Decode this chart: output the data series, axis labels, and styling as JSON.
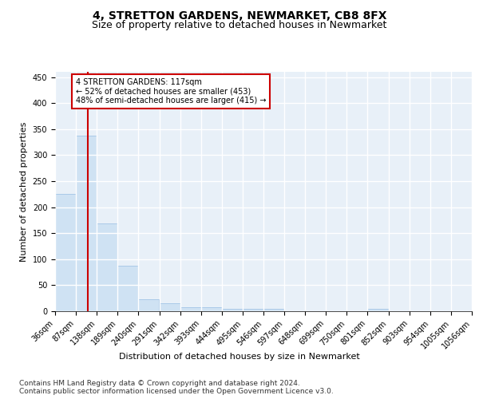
{
  "title": "4, STRETTON GARDENS, NEWMARKET, CB8 8FX",
  "subtitle": "Size of property relative to detached houses in Newmarket",
  "xlabel": "Distribution of detached houses by size in Newmarket",
  "ylabel": "Number of detached properties",
  "bin_edges": [
    36,
    87,
    138,
    189,
    240,
    291,
    342,
    393,
    444,
    495,
    546,
    597,
    648,
    699,
    750,
    801,
    852,
    903,
    954,
    1005,
    1056
  ],
  "bin_labels": [
    "36sqm",
    "87sqm",
    "138sqm",
    "189sqm",
    "240sqm",
    "291sqm",
    "342sqm",
    "393sqm",
    "444sqm",
    "495sqm",
    "546sqm",
    "597sqm",
    "648sqm",
    "699sqm",
    "750sqm",
    "801sqm",
    "852sqm",
    "903sqm",
    "954sqm",
    "1005sqm",
    "1056sqm"
  ],
  "bar_heights": [
    226,
    337,
    169,
    88,
    23,
    16,
    7,
    7,
    5,
    5,
    4,
    0,
    0,
    0,
    0,
    5,
    0,
    0,
    0,
    0
  ],
  "bar_color": "#cfe2f3",
  "bar_edge_color": "#a8c8e8",
  "vline_x": 117,
  "vline_color": "#cc0000",
  "ylim": [
    0,
    460
  ],
  "yticks": [
    0,
    50,
    100,
    150,
    200,
    250,
    300,
    350,
    400,
    450
  ],
  "annotation_line1": "4 STRETTON GARDENS: 117sqm",
  "annotation_line2": "← 52% of detached houses are smaller (453)",
  "annotation_line3": "48% of semi-detached houses are larger (415) →",
  "annotation_box_color": "#ffffff",
  "annotation_border_color": "#cc0000",
  "footer_text": "Contains HM Land Registry data © Crown copyright and database right 2024.\nContains public sector information licensed under the Open Government Licence v3.0.",
  "background_color": "#e8f0f8",
  "grid_color": "#ffffff",
  "title_fontsize": 10,
  "subtitle_fontsize": 9,
  "axis_label_fontsize": 8,
  "tick_fontsize": 7,
  "footer_fontsize": 6.5
}
